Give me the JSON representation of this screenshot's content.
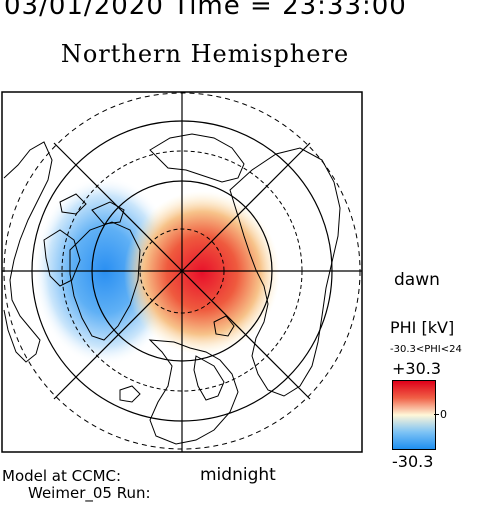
{
  "header": {
    "date_time_line": "03/01/2020 Time = 23:33:00"
  },
  "title": "Northern Hemisphere",
  "labels": {
    "dawn": "dawn",
    "midnight": "midnight"
  },
  "colorbar": {
    "variable_label": "PHI [kV]",
    "range_text": "-30.3<PHI<24",
    "max_label": "+30.3",
    "mid_label": "0",
    "min_label": "-30.3",
    "max_value": 30.3,
    "min_value": -30.3,
    "colors": {
      "high": "#e0001a",
      "neutral": "#fff7d8",
      "low": "#1f8ff0"
    }
  },
  "footer": {
    "line1": "Model at CCMC:",
    "line2": "Weimer_05 Run:"
  }
}
